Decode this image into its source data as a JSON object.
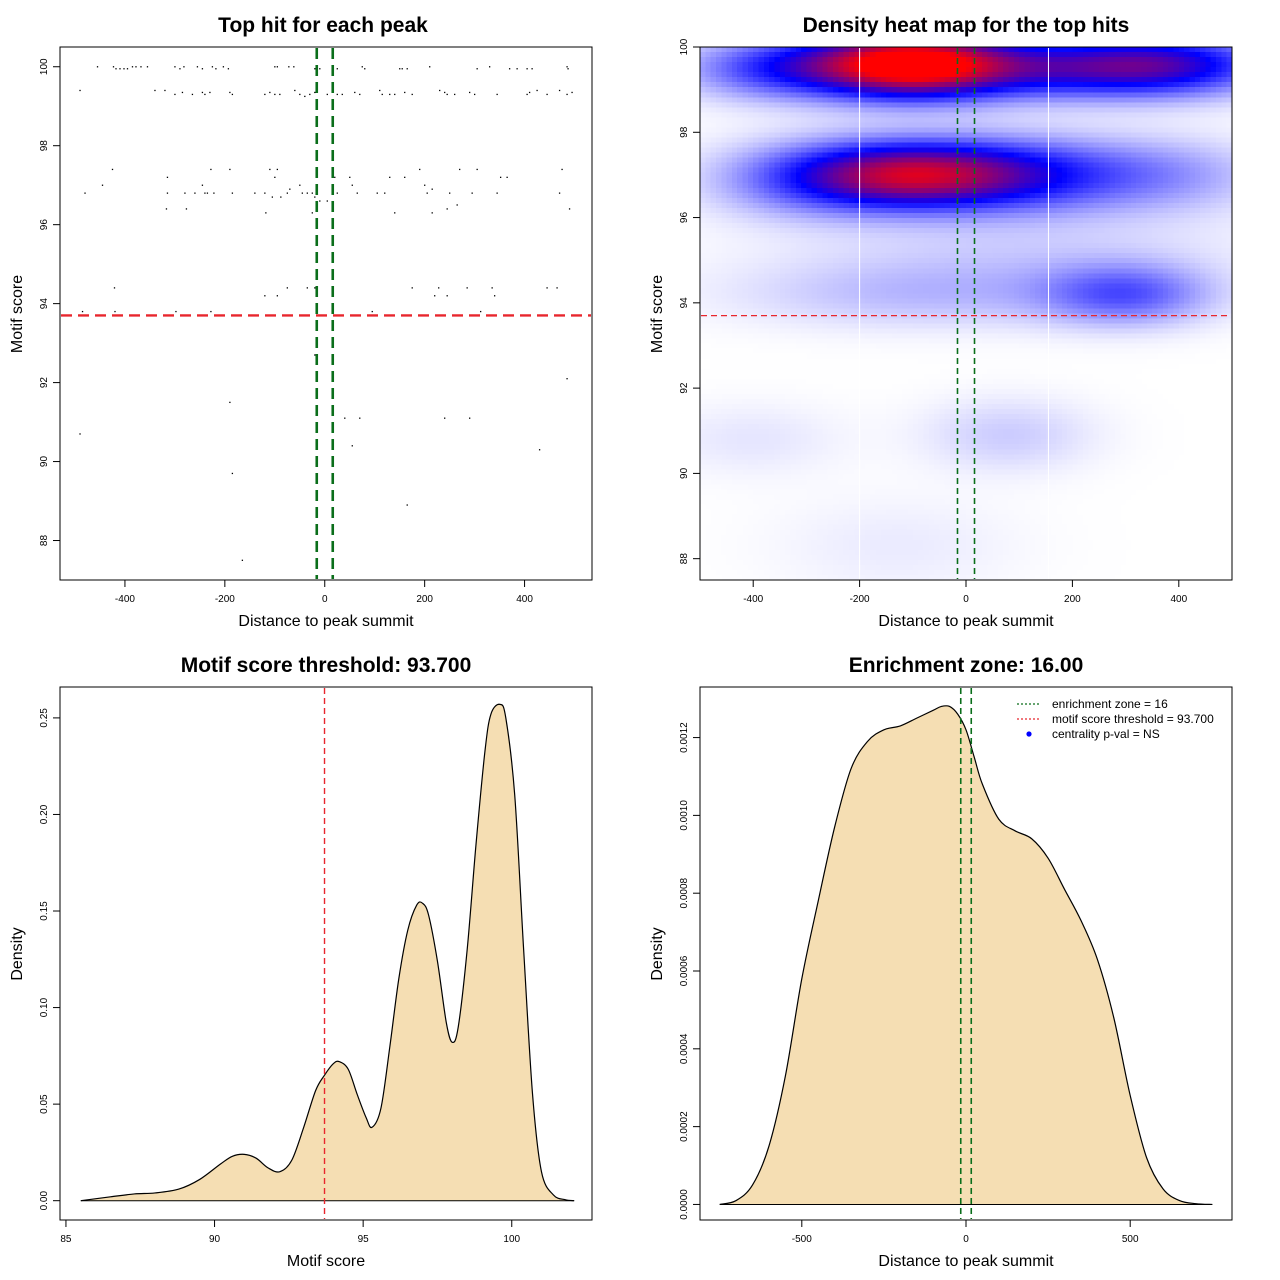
{
  "colors": {
    "threshold_line": "#e8262d",
    "zone_line": "#0a6e1a",
    "density_fill": "#f5deb3",
    "heat_high": "#ff0000",
    "heat_mid": "#0000ff",
    "heat_low": "#ffffff",
    "legend_dot": "#0000ff"
  },
  "chart_data": [
    {
      "type": "scatter",
      "title": "Top hit for each peak",
      "xlabel": "Distance to peak summit",
      "ylabel": "Motif score",
      "xlim": [
        -530,
        535
      ],
      "ylim": [
        87.0,
        100.5
      ],
      "xticks": [
        -400,
        -200,
        0,
        200,
        400
      ],
      "yticks": [
        88,
        90,
        92,
        94,
        96,
        98,
        100
      ],
      "grid": false,
      "hlines": [
        93.7
      ],
      "vlines": [
        -16,
        16
      ],
      "points": [
        [
          -455,
          100
        ],
        [
          -423,
          100
        ],
        [
          -418,
          99.95
        ],
        [
          -410,
          99.95
        ],
        [
          -402,
          99.95
        ],
        [
          -395,
          99.95
        ],
        [
          -385,
          100
        ],
        [
          -378,
          100
        ],
        [
          -368,
          100
        ],
        [
          -355,
          100
        ],
        [
          -300,
          100
        ],
        [
          -290,
          99.95
        ],
        [
          -282,
          100
        ],
        [
          -255,
          100
        ],
        [
          -245,
          99.95
        ],
        [
          -225,
          100
        ],
        [
          -218,
          99.95
        ],
        [
          -203,
          100
        ],
        [
          -193,
          99.95
        ],
        [
          -100,
          100
        ],
        [
          -95,
          100
        ],
        [
          -72,
          100
        ],
        [
          -62,
          100
        ],
        [
          -20,
          99.95
        ],
        [
          -10,
          99.95
        ],
        [
          25,
          99.95
        ],
        [
          75,
          100
        ],
        [
          80,
          99.95
        ],
        [
          150,
          99.95
        ],
        [
          155,
          99.95
        ],
        [
          165,
          99.95
        ],
        [
          210,
          100
        ],
        [
          305,
          99.95
        ],
        [
          330,
          100
        ],
        [
          370,
          99.95
        ],
        [
          385,
          99.95
        ],
        [
          405,
          99.95
        ],
        [
          415,
          99.95
        ],
        [
          485,
          100
        ],
        [
          487,
          99.95
        ],
        [
          -490,
          99.4
        ],
        [
          -340,
          99.4
        ],
        [
          -320,
          99.4
        ],
        [
          -300,
          99.3
        ],
        [
          -285,
          99.35
        ],
        [
          -265,
          99.3
        ],
        [
          -245,
          99.35
        ],
        [
          -240,
          99.3
        ],
        [
          -230,
          99.35
        ],
        [
          -190,
          99.35
        ],
        [
          -185,
          99.3
        ],
        [
          -120,
          99.3
        ],
        [
          -110,
          99.35
        ],
        [
          -100,
          99.3
        ],
        [
          -90,
          99.3
        ],
        [
          -60,
          99.4
        ],
        [
          -50,
          99.3
        ],
        [
          -40,
          99.25
        ],
        [
          -30,
          99.3
        ],
        [
          -20,
          99.35
        ],
        [
          5,
          99.3
        ],
        [
          15,
          99.4
        ],
        [
          25,
          99.3
        ],
        [
          35,
          99.3
        ],
        [
          60,
          99.35
        ],
        [
          70,
          99.3
        ],
        [
          110,
          99.4
        ],
        [
          115,
          99.3
        ],
        [
          130,
          99.3
        ],
        [
          140,
          99.3
        ],
        [
          160,
          99.35
        ],
        [
          175,
          99.3
        ],
        [
          230,
          99.4
        ],
        [
          240,
          99.35
        ],
        [
          245,
          99.3
        ],
        [
          260,
          99.3
        ],
        [
          290,
          99.35
        ],
        [
          300,
          99.3
        ],
        [
          345,
          99.3
        ],
        [
          405,
          99.3
        ],
        [
          410,
          99.35
        ],
        [
          425,
          99.4
        ],
        [
          445,
          99.3
        ],
        [
          470,
          99.4
        ],
        [
          485,
          99.3
        ],
        [
          495,
          99.35
        ],
        [
          -480,
          96.8
        ],
        [
          -445,
          97.0
        ],
        [
          -425,
          97.4
        ],
        [
          -315,
          97.2
        ],
        [
          -315,
          96.8
        ],
        [
          -317,
          96.4
        ],
        [
          -280,
          96.8
        ],
        [
          -277,
          96.4
        ],
        [
          -260,
          96.8
        ],
        [
          -245,
          97.0
        ],
        [
          -240,
          96.8
        ],
        [
          -235,
          96.8
        ],
        [
          -228,
          97.4
        ],
        [
          -222,
          96.8
        ],
        [
          -190,
          97.4
        ],
        [
          -185,
          96.8
        ],
        [
          -140,
          96.8
        ],
        [
          -120,
          96.8
        ],
        [
          -118,
          96.3
        ],
        [
          -110,
          97.4
        ],
        [
          -105,
          96.7
        ],
        [
          -100,
          97.2
        ],
        [
          -95,
          97.4
        ],
        [
          -88,
          96.7
        ],
        [
          -75,
          96.8
        ],
        [
          -70,
          96.9
        ],
        [
          -50,
          97.0
        ],
        [
          -45,
          96.8
        ],
        [
          -35,
          96.8
        ],
        [
          -25,
          96.8
        ],
        [
          -25,
          96.3
        ],
        [
          -20,
          96.7
        ],
        [
          -10,
          96.6
        ],
        [
          5,
          96.6
        ],
        [
          20,
          97.2
        ],
        [
          25,
          96.8
        ],
        [
          50,
          97.2
        ],
        [
          55,
          97.0
        ],
        [
          65,
          96.8
        ],
        [
          105,
          96.8
        ],
        [
          120,
          96.8
        ],
        [
          130,
          97.2
        ],
        [
          140,
          96.3
        ],
        [
          160,
          97.2
        ],
        [
          190,
          97.4
        ],
        [
          200,
          97.0
        ],
        [
          205,
          96.8
        ],
        [
          215,
          96.3
        ],
        [
          215,
          96.9
        ],
        [
          245,
          96.4
        ],
        [
          250,
          96.8
        ],
        [
          265,
          96.5
        ],
        [
          270,
          97.4
        ],
        [
          295,
          96.8
        ],
        [
          305,
          97.4
        ],
        [
          345,
          96.8
        ],
        [
          352,
          97.2
        ],
        [
          365,
          97.2
        ],
        [
          470,
          96.8
        ],
        [
          475,
          97.4
        ],
        [
          490,
          96.4
        ],
        [
          -485,
          93.8
        ],
        [
          -421,
          94.4
        ],
        [
          -420,
          93.8
        ],
        [
          -298,
          93.8
        ],
        [
          -228,
          93.8
        ],
        [
          -120,
          94.2
        ],
        [
          -95,
          94.2
        ],
        [
          -75,
          94.4
        ],
        [
          -35,
          94.4
        ],
        [
          -20,
          94.4
        ],
        [
          95,
          93.8
        ],
        [
          175,
          94.4
        ],
        [
          220,
          94.2
        ],
        [
          228,
          94.4
        ],
        [
          245,
          94.2
        ],
        [
          285,
          94.4
        ],
        [
          312,
          93.8
        ],
        [
          335,
          94.4
        ],
        [
          340,
          94.2
        ],
        [
          445,
          94.4
        ],
        [
          465,
          94.4
        ],
        [
          -20,
          92.7
        ],
        [
          -490,
          90.7
        ],
        [
          -190,
          91.5
        ],
        [
          -185,
          89.7
        ],
        [
          -165,
          87.5
        ],
        [
          40,
          91.1
        ],
        [
          55,
          90.4
        ],
        [
          70,
          91.1
        ],
        [
          165,
          88.9
        ],
        [
          240,
          91.1
        ],
        [
          290,
          91.1
        ],
        [
          430,
          90.3
        ],
        [
          485,
          92.1
        ]
      ]
    },
    {
      "type": "heatmap",
      "title": "Density heat map for the top hits",
      "xlabel": "Distance to peak summit",
      "ylabel": "Motif score",
      "xlim": [
        -500,
        500
      ],
      "ylim": [
        87.5,
        100.0
      ],
      "xticks": [
        -400,
        -200,
        0,
        200,
        400
      ],
      "yticks": [
        88,
        90,
        92,
        94,
        96,
        98,
        100
      ],
      "hlines": [
        93.7
      ],
      "vlines": [
        -16,
        16
      ],
      "white_vlines": [
        -200,
        155
      ],
      "color_scale": [
        "white",
        "blue",
        "red"
      ],
      "blobs": [
        {
          "x": -110,
          "y": 99.6,
          "sx": 130,
          "sy": 0.55,
          "w": 1.0
        },
        {
          "x": 180,
          "y": 99.5,
          "sx": 200,
          "sy": 0.5,
          "w": 0.45
        },
        {
          "x": 380,
          "y": 99.6,
          "sx": 140,
          "sy": 0.5,
          "w": 0.4
        },
        {
          "x": -360,
          "y": 99.5,
          "sx": 120,
          "sy": 0.5,
          "w": 0.35
        },
        {
          "x": -110,
          "y": 97.0,
          "sx": 140,
          "sy": 0.55,
          "w": 0.72
        },
        {
          "x": 100,
          "y": 97.0,
          "sx": 140,
          "sy": 0.6,
          "w": 0.38
        },
        {
          "x": 360,
          "y": 97.0,
          "sx": 140,
          "sy": 0.6,
          "w": 0.2
        },
        {
          "x": -300,
          "y": 96.9,
          "sx": 130,
          "sy": 0.6,
          "w": 0.25
        },
        {
          "x": 300,
          "y": 94.2,
          "sx": 110,
          "sy": 0.5,
          "w": 0.3
        },
        {
          "x": -80,
          "y": 94.2,
          "sx": 240,
          "sy": 0.55,
          "w": 0.12
        },
        {
          "x": 100,
          "y": 95.2,
          "sx": 300,
          "sy": 0.8,
          "w": 0.08
        },
        {
          "x": 80,
          "y": 90.9,
          "sx": 110,
          "sy": 0.6,
          "w": 0.1
        },
        {
          "x": -400,
          "y": 90.8,
          "sx": 120,
          "sy": 0.6,
          "w": 0.05
        },
        {
          "x": -130,
          "y": 88.3,
          "sx": 160,
          "sy": 0.8,
          "w": 0.04
        }
      ]
    },
    {
      "type": "area",
      "title": "Motif score threshold: 93.700",
      "xlabel": "Motif score",
      "ylabel": "Density",
      "xlim": [
        84.8,
        102.7
      ],
      "ylim": [
        -0.01,
        0.266
      ],
      "xticks": [
        85,
        90,
        95,
        100
      ],
      "yticks": [
        0.0,
        0.05,
        0.1,
        0.15,
        0.2,
        0.25
      ],
      "ytick_labels": [
        "0.00",
        "0.05",
        "0.10",
        "0.15",
        "0.20",
        "0.25"
      ],
      "vlines": [
        93.7
      ],
      "x": [
        85.5,
        86.5,
        87.3,
        88.0,
        88.8,
        89.5,
        90.2,
        90.6,
        91.0,
        91.4,
        91.8,
        92.2,
        92.6,
        93.0,
        93.4,
        93.7,
        94.0,
        94.2,
        94.5,
        94.8,
        95.1,
        95.3,
        95.6,
        95.9,
        96.2,
        96.5,
        96.8,
        97.0,
        97.2,
        97.5,
        97.8,
        98.0,
        98.2,
        98.5,
        98.8,
        99.1,
        99.3,
        99.6,
        99.8,
        100.1,
        100.4,
        100.7,
        101.0,
        101.4,
        101.8,
        102.1
      ],
      "y": [
        0.0,
        0.002,
        0.0035,
        0.004,
        0.006,
        0.011,
        0.019,
        0.023,
        0.024,
        0.022,
        0.017,
        0.015,
        0.021,
        0.038,
        0.057,
        0.065,
        0.071,
        0.072,
        0.068,
        0.055,
        0.043,
        0.038,
        0.048,
        0.08,
        0.115,
        0.14,
        0.153,
        0.154,
        0.148,
        0.124,
        0.092,
        0.082,
        0.09,
        0.13,
        0.185,
        0.233,
        0.252,
        0.257,
        0.25,
        0.21,
        0.13,
        0.055,
        0.015,
        0.003,
        0.0005,
        0.0
      ]
    },
    {
      "type": "area",
      "title": "Enrichment zone: 16.00",
      "xlabel": "Distance to peak summit",
      "ylabel": "Density",
      "xlim": [
        -810,
        810
      ],
      "ylim": [
        -4e-05,
        0.00133
      ],
      "xticks": [
        -500,
        0,
        500
      ],
      "yticks": [
        0.0,
        0.0002,
        0.0004,
        0.0006,
        0.0008,
        0.001,
        0.0012
      ],
      "ytick_labels": [
        "0.0000",
        "0.0002",
        "0.0004",
        "0.0006",
        "0.0008",
        "0.0010",
        "0.0012"
      ],
      "vlines": [
        -16,
        16
      ],
      "legend": {
        "position": "top-right",
        "items": [
          "enrichment zone = 16",
          "motif score threshold = 93.700",
          "centrality p-val = NS"
        ]
      },
      "x": [
        -750,
        -700,
        -650,
        -600,
        -550,
        -500,
        -450,
        -400,
        -350,
        -300,
        -250,
        -200,
        -150,
        -100,
        -75,
        -50,
        -25,
        0,
        25,
        50,
        100,
        150,
        200,
        250,
        300,
        350,
        400,
        450,
        500,
        550,
        600,
        650,
        700,
        750
      ],
      "y": [
        0.0,
        1e-05,
        5e-05,
        0.00015,
        0.00033,
        0.00058,
        0.00078,
        0.00097,
        0.00112,
        0.00119,
        0.00122,
        0.00123,
        0.00125,
        0.00127,
        0.00128,
        0.00128,
        0.00126,
        0.00122,
        0.00115,
        0.00108,
        0.00099,
        0.00096,
        0.00094,
        0.00089,
        0.00081,
        0.00073,
        0.00063,
        0.00048,
        0.00028,
        0.00012,
        4e-05,
        1e-05,
        2e-06,
        0.0
      ]
    }
  ]
}
